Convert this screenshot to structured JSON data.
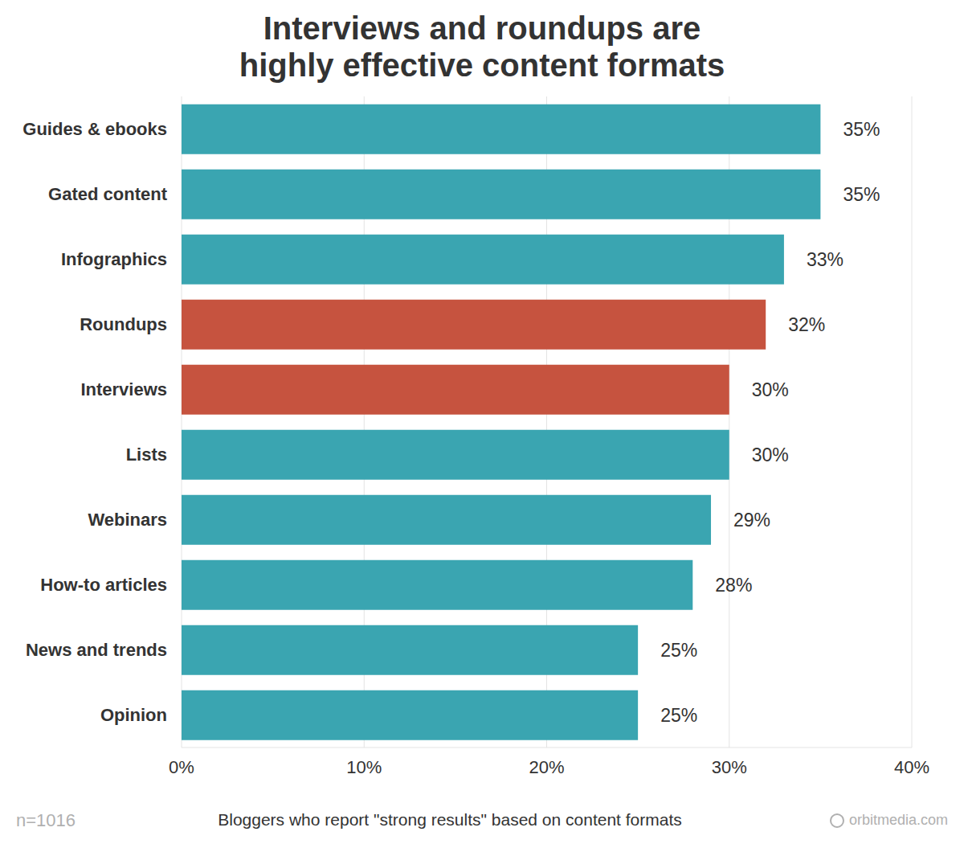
{
  "chart_data": {
    "type": "bar",
    "title": "Interviews and roundups are\nhighly effective content formats",
    "x_label": "Bloggers who report \"strong results\" based on content formats",
    "annotations": [
      "n=1016",
      "orbitmedia.com"
    ],
    "orientation": "horizontal",
    "categories": [
      "Guides & ebooks",
      "Gated content",
      "Infographics",
      "Roundups",
      "Interviews",
      "Lists",
      "Webinars",
      "How-to articles",
      "News and trends",
      "Opinion"
    ],
    "values": [
      35,
      35,
      33,
      32,
      30,
      30,
      29,
      28,
      25,
      25
    ],
    "value_labels": [
      "35%",
      "35%",
      "33%",
      "32%",
      "30%",
      "30%",
      "29%",
      "28%",
      "25%",
      "25%"
    ],
    "colors": [
      "#3aa5b1",
      "#3aa5b1",
      "#3aa5b1",
      "#c6533f",
      "#c6533f",
      "#3aa5b1",
      "#3aa5b1",
      "#3aa5b1",
      "#3aa5b1",
      "#3aa5b1"
    ],
    "xlim": [
      0,
      40
    ],
    "xticks": [
      {
        "value": 0,
        "label": "0%"
      },
      {
        "value": 10,
        "label": "10%"
      },
      {
        "value": 20,
        "label": "20%"
      },
      {
        "value": 30,
        "label": "30%"
      },
      {
        "value": 40,
        "label": "40%"
      }
    ],
    "grid": true,
    "data_labels": true
  }
}
